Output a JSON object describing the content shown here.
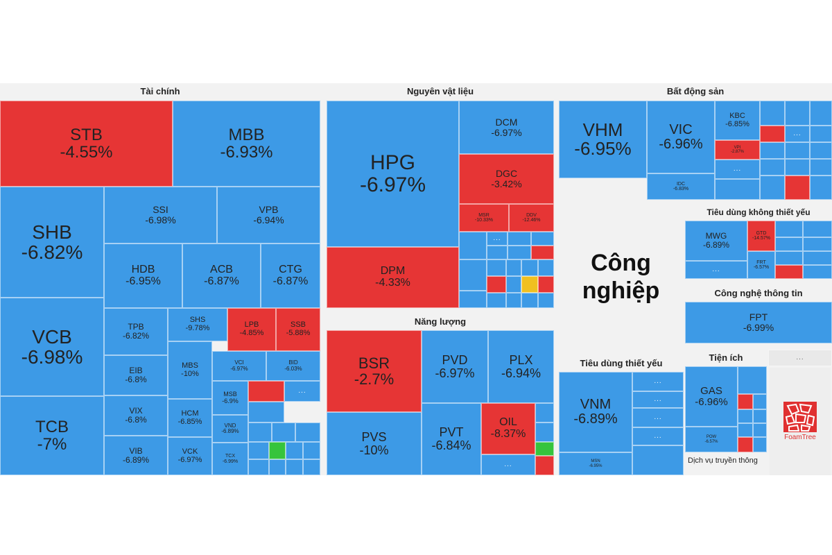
{
  "sections": {
    "tai_chinh": "Tài chính",
    "nguyen_vat_lieu": "Nguyên vật liệu",
    "bat_dong_san": "Bất động sản",
    "nang_luong": "Năng lượng",
    "tieu_dung_khong_thiet_yeu": "Tiêu dùng không thiết yếu",
    "cong_nghiep": "Công nghiệp",
    "cong_nghe_thong_tin": "Công nghệ thông tin",
    "tieu_dung_thiet_yeu": "Tiêu dùng thiết yếu",
    "tien_ich": "Tiện ích",
    "dich_vu_truyen_thong": "Dịch vụ truyền thông"
  },
  "more_label": "...",
  "logo_text": "FoamTree",
  "colors": {
    "down": "#3d9ae6",
    "up": "#e63535",
    "ceiling": "#36c43c",
    "flat": "#f0c020"
  },
  "tiles": [
    {
      "t": "STB",
      "p": "-4.55%",
      "c": "red"
    },
    {
      "t": "MBB",
      "p": "-6.93%",
      "c": "blue"
    },
    {
      "t": "SHB",
      "p": "-6.82%",
      "c": "blue"
    },
    {
      "t": "SSI",
      "p": "-6.98%",
      "c": "blue"
    },
    {
      "t": "VPB",
      "p": "-6.94%",
      "c": "blue"
    },
    {
      "t": "HDB",
      "p": "-6.95%",
      "c": "blue"
    },
    {
      "t": "ACB",
      "p": "-6.87%",
      "c": "blue"
    },
    {
      "t": "CTG",
      "p": "-6.87%",
      "c": "blue"
    },
    {
      "t": "VCB",
      "p": "-6.98%",
      "c": "blue"
    },
    {
      "t": "TPB",
      "p": "-6.82%",
      "c": "blue"
    },
    {
      "t": "SHS",
      "p": "-9.78%",
      "c": "blue"
    },
    {
      "t": "LPB",
      "p": "-4.85%",
      "c": "red"
    },
    {
      "t": "SSB",
      "p": "-5.88%",
      "c": "red"
    },
    {
      "t": "EIB",
      "p": "-6.8%",
      "c": "blue"
    },
    {
      "t": "MBS",
      "p": "-10%",
      "c": "blue"
    },
    {
      "t": "VCI",
      "p": "-6.97%",
      "c": "blue"
    },
    {
      "t": "BID",
      "p": "-6.03%",
      "c": "blue"
    },
    {
      "t": "VIX",
      "p": "-6.8%",
      "c": "blue"
    },
    {
      "t": "HCM",
      "p": "-6.85%",
      "c": "blue"
    },
    {
      "t": "MSB",
      "p": "-6.9%",
      "c": "blue"
    },
    {
      "t": "TCB",
      "p": "-7%",
      "c": "blue"
    },
    {
      "t": "VIB",
      "p": "-6.89%",
      "c": "blue"
    },
    {
      "t": "VCK",
      "p": "-6.97%",
      "c": "blue"
    },
    {
      "t": "VND",
      "p": "-6.89%",
      "c": "blue"
    },
    {
      "t": "TCX",
      "p": "-6.99%",
      "c": "blue"
    },
    {
      "t": "HPG",
      "p": "-6.97%",
      "c": "blue"
    },
    {
      "t": "DCM",
      "p": "-6.97%",
      "c": "blue"
    },
    {
      "t": "DGC",
      "p": "-3.42%",
      "c": "red"
    },
    {
      "t": "MSR",
      "p": "-10.33%",
      "c": "red"
    },
    {
      "t": "DDV",
      "p": "-12.46%",
      "c": "red"
    },
    {
      "t": "DPM",
      "p": "-4.33%",
      "c": "red"
    },
    {
      "t": "VHM",
      "p": "-6.95%",
      "c": "blue"
    },
    {
      "t": "VIC",
      "p": "-6.96%",
      "c": "blue"
    },
    {
      "t": "KBC",
      "p": "-6.85%",
      "c": "blue"
    },
    {
      "t": "IDC",
      "p": "-6.83%",
      "c": "blue"
    },
    {
      "t": "VPI",
      "p": "-2.87%",
      "c": "red"
    },
    {
      "t": "BSR",
      "p": "-2.7%",
      "c": "red"
    },
    {
      "t": "PVD",
      "p": "-6.97%",
      "c": "blue"
    },
    {
      "t": "PLX",
      "p": "-6.94%",
      "c": "blue"
    },
    {
      "t": "PVS",
      "p": "-10%",
      "c": "blue"
    },
    {
      "t": "PVT",
      "p": "-6.84%",
      "c": "blue"
    },
    {
      "t": "OIL",
      "p": "-8.37%",
      "c": "red"
    },
    {
      "t": "MWG",
      "p": "-6.89%",
      "c": "blue"
    },
    {
      "t": "GTD",
      "p": "-14.57%",
      "c": "red"
    },
    {
      "t": "FRT",
      "p": "-6.57%",
      "c": "blue"
    },
    {
      "t": "FPT",
      "p": "-6.99%",
      "c": "blue"
    },
    {
      "t": "VNM",
      "p": "-6.89%",
      "c": "blue"
    },
    {
      "t": "MSN",
      "p": "-6.95%",
      "c": "blue"
    },
    {
      "t": "GAS",
      "p": "-6.96%",
      "c": "blue"
    },
    {
      "t": "POW",
      "p": "-6.57%",
      "c": "blue"
    }
  ]
}
